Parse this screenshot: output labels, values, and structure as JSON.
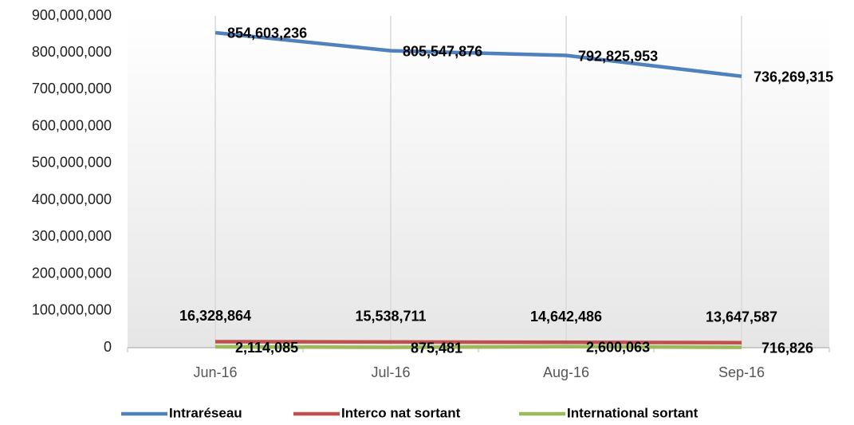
{
  "chart_data": {
    "type": "line",
    "categories": [
      "Jun-16",
      "Jul-16",
      "Aug-16",
      "Sep-16"
    ],
    "series": [
      {
        "name": "Intraréseau",
        "color": "#4f81bd",
        "values": [
          854603236,
          805547876,
          792825953,
          736269315
        ],
        "value_labels": [
          "854,603,236",
          "805,547,876",
          "792,825,953",
          "736,269,315"
        ]
      },
      {
        "name": "Interco nat sortant",
        "color": "#c0504d",
        "values": [
          16328864,
          15538711,
          14642486,
          13647587
        ],
        "value_labels": [
          "16,328,864",
          "15,538,711",
          "14,642,486",
          "13,647,587"
        ]
      },
      {
        "name": "International sortant",
        "color": "#9bbb59",
        "values": [
          2114085,
          875481,
          2600063,
          716826
        ],
        "value_labels": [
          "2,114,085",
          "875,481",
          "2,600,063",
          "716,826"
        ]
      }
    ],
    "ylim": [
      0,
      900000000
    ],
    "yticks": [
      0,
      {
        "value": 100000000,
        "label": "100,000,000"
      },
      {
        "value": 200000000,
        "label": "200,000,000"
      },
      {
        "value": 300000000,
        "label": "300,000,000"
      },
      {
        "value": 400000000,
        "label": "400,000,000"
      },
      {
        "value": 500000000,
        "label": "500,000,000"
      },
      {
        "value": 600000000,
        "label": "600,000,000"
      },
      {
        "value": 700000000,
        "label": "700,000,000"
      },
      {
        "value": 800000000,
        "label": "800,000,000"
      },
      {
        "value": 900000000,
        "label": "900,000,000"
      }
    ],
    "grid": false,
    "legend": "bottom"
  }
}
